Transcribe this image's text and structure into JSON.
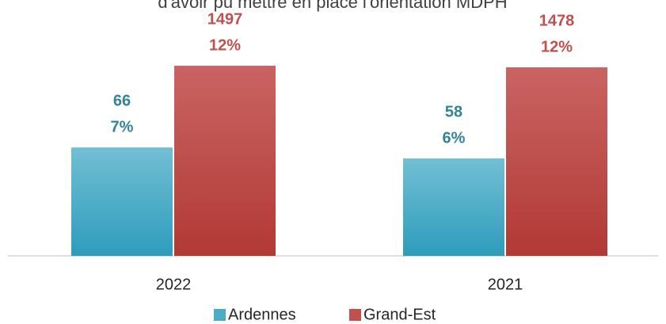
{
  "chart_data": {
    "type": "bar",
    "title": "d'avoir pu mettre en place l'orientation MDPH",
    "categories": [
      "2022",
      "2021"
    ],
    "series": [
      {
        "name": "Ardennes",
        "color": "#4bacc6",
        "label_color": "#31849b",
        "values": [
          6.9,
          6.2
        ],
        "value_labels": [
          "7%",
          "6%"
        ],
        "counts": [
          66,
          58
        ]
      },
      {
        "name": "Grand-Est",
        "color": "#c0504d",
        "label_color": "#c0504d",
        "values": [
          12.1,
          12.0
        ],
        "value_labels": [
          "12%",
          "12%"
        ],
        "counts": [
          1497,
          1478
        ]
      }
    ],
    "legend": "bottom"
  }
}
